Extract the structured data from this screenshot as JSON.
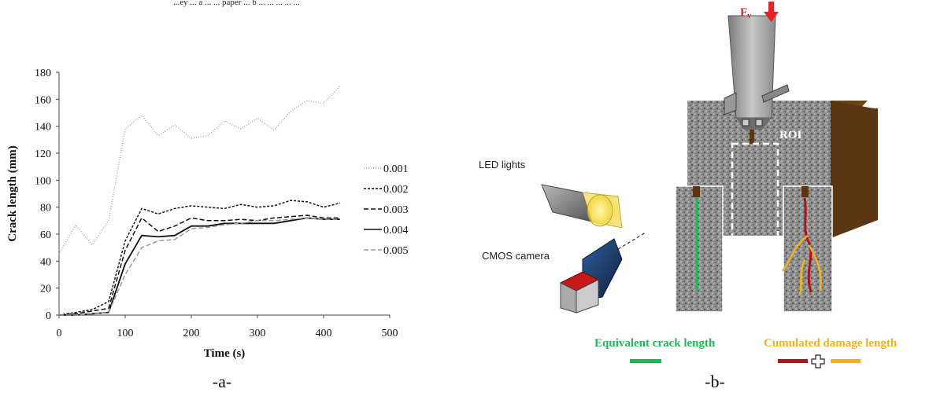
{
  "caption_top": "...ey ... a ... ... paper ... b ... ... ... ... ...",
  "chart_data": {
    "type": "line",
    "title": "",
    "xlabel": "Time (s)",
    "ylabel": "Crack length (mm)",
    "xlim": [
      0,
      500
    ],
    "ylim": [
      0,
      180
    ],
    "x_ticks": [
      0,
      100,
      200,
      300,
      400,
      500
    ],
    "y_ticks": [
      0,
      20,
      40,
      60,
      80,
      100,
      120,
      140,
      160,
      180
    ],
    "grid": false,
    "legend_position": "right",
    "series": [
      {
        "name": "0.001",
        "color": "#aaaaaa",
        "dash": "1,2",
        "x": [
          0,
          25,
          50,
          75,
          100,
          125,
          150,
          175,
          200,
          225,
          250,
          275,
          300,
          325,
          350,
          375,
          400,
          425
        ],
        "y": [
          45,
          67,
          52,
          70,
          138,
          148,
          133,
          141,
          131,
          133,
          144,
          138,
          146,
          137,
          151,
          159,
          157,
          170
        ]
      },
      {
        "name": "0.002",
        "color": "#111111",
        "dash": "3,2",
        "x": [
          0,
          25,
          50,
          75,
          100,
          125,
          150,
          175,
          200,
          225,
          250,
          275,
          300,
          325,
          350,
          375,
          400,
          425
        ],
        "y": [
          0,
          2,
          4,
          10,
          55,
          79,
          75,
          79,
          81,
          80,
          79,
          82,
          80,
          81,
          85,
          84,
          80,
          83
        ]
      },
      {
        "name": "0.003",
        "color": "#111111",
        "dash": "6,3",
        "x": [
          0,
          25,
          50,
          75,
          100,
          125,
          150,
          175,
          200,
          225,
          250,
          275,
          300,
          325,
          350,
          375,
          400,
          425
        ],
        "y": [
          0,
          1,
          3,
          5,
          48,
          72,
          62,
          66,
          72,
          70,
          70,
          71,
          70,
          72,
          73,
          74,
          72,
          72
        ]
      },
      {
        "name": "0.004",
        "color": "#111111",
        "dash": "",
        "x": [
          0,
          25,
          50,
          75,
          100,
          125,
          150,
          175,
          200,
          225,
          250,
          275,
          300,
          325,
          350,
          375,
          400,
          425
        ],
        "y": [
          0,
          0,
          1,
          2,
          38,
          59,
          58,
          59,
          66,
          66,
          68,
          68,
          68,
          68,
          70,
          72,
          71,
          71
        ]
      },
      {
        "name": "0.005",
        "color": "#999999",
        "dash": "6,3",
        "x": [
          0,
          25,
          50,
          75,
          100,
          125,
          150,
          175,
          200,
          225,
          250,
          275,
          300,
          325,
          350,
          375,
          400,
          425
        ],
        "y": [
          0,
          0,
          1,
          2,
          30,
          50,
          55,
          56,
          64,
          65,
          67,
          68,
          70,
          70,
          71,
          72,
          71,
          71
        ]
      }
    ]
  },
  "panel_a_label": "-a-",
  "diagram": {
    "force_label": "F",
    "force_subscript": "v",
    "roi_label": "ROI",
    "led_label": "LED lights",
    "camera_label": "CMOS camera",
    "equivalent_label": "Equivalent crack length",
    "cumulated_label": "Cumulated damage length",
    "colors": {
      "force": "#e8202a",
      "equivalent": "#1db954",
      "cumulated": "#f2b21c",
      "crack_red": "#b3121a",
      "wood": "#5a3612"
    }
  },
  "panel_b_label": "-b-"
}
